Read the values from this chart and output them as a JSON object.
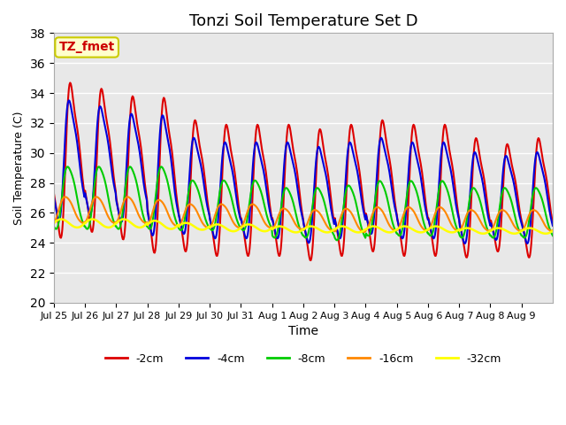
{
  "title": "Tonzi Soil Temperature Set D",
  "xlabel": "Time",
  "ylabel": "Soil Temperature (C)",
  "ylim": [
    20,
    38
  ],
  "yticks": [
    20,
    22,
    24,
    26,
    28,
    30,
    32,
    34,
    36,
    38
  ],
  "bg_color": "#e8e8e8",
  "fig_color": "#ffffff",
  "label_box_text": "TZ_fmet",
  "label_box_facecolor": "#ffffcc",
  "label_box_edgecolor": "#cccc00",
  "line_colors": [
    "#dd0000",
    "#0000dd",
    "#00cc00",
    "#ff8800",
    "#ffff00"
  ],
  "line_lw": [
    1.5,
    1.5,
    1.5,
    1.5,
    1.8
  ],
  "legend_labels": [
    "-2cm",
    "-4cm",
    "-8cm",
    "-16cm",
    "-32cm"
  ],
  "n_days": 16,
  "day_labels": [
    "Jul 25",
    "Jul 26",
    "Jul 27",
    "Jul 28",
    "Jul 29",
    "Jul 30",
    "Jul 31",
    "Aug 1",
    "Aug 2",
    "Aug 3",
    "Aug 4",
    "Aug 5",
    "Aug 6",
    "Aug 7",
    "Aug 8",
    "Aug 9"
  ],
  "pts_per_day": 48,
  "series_params": {
    "2cm": {
      "mean": [
        29.5,
        29.5,
        29.0,
        28.5,
        27.8,
        27.5,
        27.5,
        27.5,
        27.2,
        27.5,
        27.8,
        27.5,
        27.5,
        27.0,
        27.0,
        27.0
      ],
      "amp": [
        6.5,
        6.0,
        6.0,
        6.5,
        5.5,
        5.5,
        5.5,
        5.5,
        5.5,
        5.5,
        5.5,
        5.5,
        5.5,
        5.0,
        4.5,
        5.0
      ],
      "phase": 0.0,
      "asym": 0.3
    },
    "4cm": {
      "mean": [
        29.5,
        29.5,
        29.0,
        28.5,
        27.8,
        27.5,
        27.5,
        27.5,
        27.2,
        27.5,
        27.8,
        27.5,
        27.5,
        27.0,
        27.0,
        27.0
      ],
      "amp": [
        5.0,
        4.5,
        4.5,
        5.0,
        4.0,
        4.0,
        4.0,
        4.0,
        4.0,
        4.0,
        4.0,
        4.0,
        4.0,
        3.8,
        3.5,
        3.8
      ],
      "phase": 0.05,
      "asym": 0.25
    },
    "8cm": {
      "mean": [
        27.0,
        27.0,
        27.0,
        27.0,
        26.5,
        26.5,
        26.5,
        26.0,
        26.0,
        26.0,
        26.3,
        26.3,
        26.3,
        26.0,
        26.0,
        26.0
      ],
      "amp": [
        2.5,
        2.5,
        2.5,
        2.5,
        2.0,
        2.0,
        2.0,
        2.0,
        2.0,
        2.2,
        2.2,
        2.2,
        2.2,
        2.0,
        2.0,
        2.0
      ],
      "phase": 0.12,
      "asym": 0.15
    },
    "16cm": {
      "mean": [
        26.2,
        26.2,
        26.2,
        26.0,
        25.8,
        25.8,
        25.8,
        25.6,
        25.5,
        25.5,
        25.6,
        25.6,
        25.6,
        25.5,
        25.5,
        25.5
      ],
      "amp": [
        1.0,
        1.0,
        1.0,
        1.0,
        0.9,
        0.9,
        0.9,
        0.8,
        0.8,
        0.9,
        0.9,
        0.9,
        0.9,
        0.8,
        0.8,
        0.8
      ],
      "phase": 0.22,
      "asym": 0.1
    },
    "32cm": {
      "mean": [
        25.3,
        25.3,
        25.3,
        25.2,
        25.1,
        25.0,
        25.0,
        24.9,
        24.9,
        24.9,
        24.9,
        24.9,
        24.9,
        24.8,
        24.8,
        24.8
      ],
      "amp": [
        0.3,
        0.3,
        0.3,
        0.3,
        0.25,
        0.25,
        0.25,
        0.22,
        0.22,
        0.22,
        0.22,
        0.22,
        0.22,
        0.2,
        0.2,
        0.2
      ],
      "phase": 0.38,
      "asym": 0.05
    }
  }
}
